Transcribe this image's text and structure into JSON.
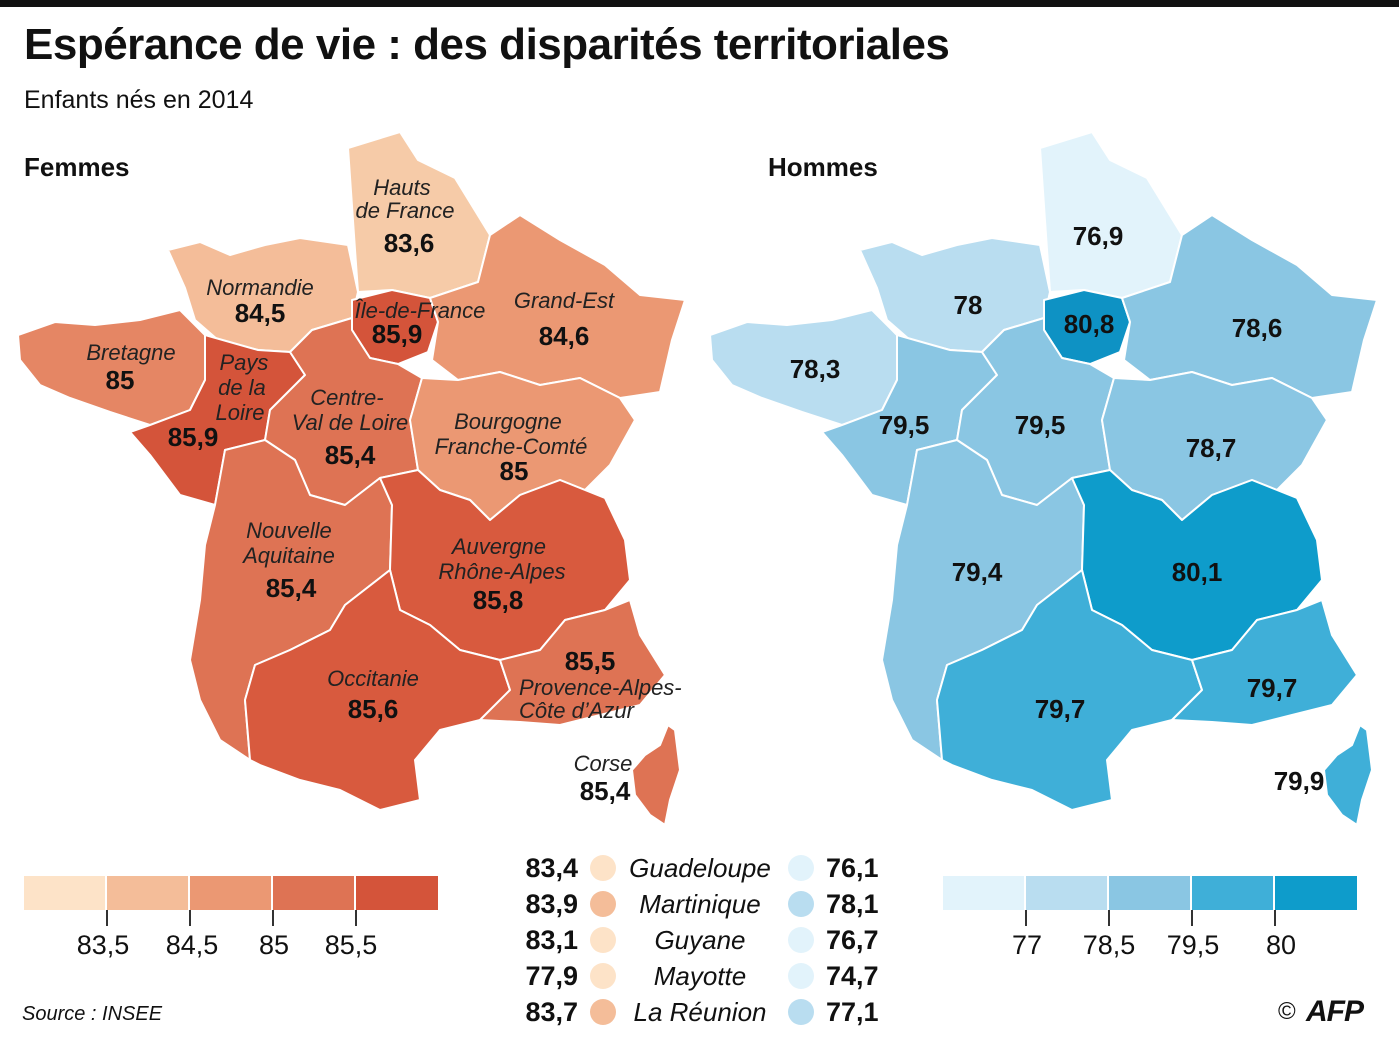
{
  "title": "Espérance de vie : des disparités territoriales",
  "subtitle": "Enfants nés en 2014",
  "women": {
    "heading": "Femmes",
    "regions": [
      {
        "id": "hdf",
        "name_lines": [
          "Hauts",
          "de France"
        ],
        "value": "83,6",
        "color": "#f6cba8"
      },
      {
        "id": "nor",
        "name_lines": [
          "Normandie"
        ],
        "value": "84,5",
        "color": "#f4bd99"
      },
      {
        "id": "idf",
        "name_lines": [
          "Île-de-France"
        ],
        "value": "85,9",
        "color": "#d4543a"
      },
      {
        "id": "ge",
        "name_lines": [
          "Grand-Est"
        ],
        "value": "84,6",
        "color": "#eb9873"
      },
      {
        "id": "bre",
        "name_lines": [
          "Bretagne"
        ],
        "value": "85",
        "color": "#e58664"
      },
      {
        "id": "pdl",
        "name_lines": [
          "Pays",
          "de la",
          "Loire"
        ],
        "value": "85,9",
        "color": "#d4543a"
      },
      {
        "id": "cvl",
        "name_lines": [
          "Centre-",
          "Val de Loire"
        ],
        "value": "85,4",
        "color": "#de7354"
      },
      {
        "id": "bfc",
        "name_lines": [
          "Bourgogne",
          "Franche-Comté"
        ],
        "value": "85",
        "color": "#eb9873"
      },
      {
        "id": "naq",
        "name_lines": [
          "Nouvelle",
          "Aquitaine"
        ],
        "value": "85,4",
        "color": "#de7354"
      },
      {
        "id": "ara",
        "name_lines": [
          "Auvergne",
          "Rhône-Alpes"
        ],
        "value": "85,8",
        "color": "#d85a3e"
      },
      {
        "id": "occ",
        "name_lines": [
          "Occitanie"
        ],
        "value": "85,6",
        "color": "#d85a3e"
      },
      {
        "id": "pac",
        "name_lines": [
          "Provence-Alpes-",
          "Côte d’Azur"
        ],
        "value": "85,5",
        "color": "#de7354"
      },
      {
        "id": "cor",
        "name_lines": [
          "Corse"
        ],
        "value": "85,4",
        "color": "#de7354"
      }
    ],
    "legend": {
      "colors": [
        "#fde3c8",
        "#f4bd99",
        "#eb9873",
        "#de7354",
        "#d4543a"
      ],
      "ticks": [
        "83,5",
        "84,5",
        "85",
        "85,5"
      ]
    }
  },
  "men": {
    "heading": "Hommes",
    "regions": [
      {
        "id": "hdf",
        "value": "76,9",
        "color": "#e2f3fb"
      },
      {
        "id": "nor",
        "value": "78",
        "color": "#b9ddf0"
      },
      {
        "id": "idf",
        "value": "80,8",
        "color": "#0e92c4"
      },
      {
        "id": "ge",
        "value": "78,6",
        "color": "#8ac6e3"
      },
      {
        "id": "bre",
        "value": "78,3",
        "color": "#b9ddf0"
      },
      {
        "id": "pdl",
        "value": "79,5",
        "color": "#8ac6e3"
      },
      {
        "id": "cvl",
        "value": "79,5",
        "color": "#8ac6e3"
      },
      {
        "id": "bfc",
        "value": "78,7",
        "color": "#8ac6e3"
      },
      {
        "id": "naq",
        "value": "79,4",
        "color": "#8ac6e3"
      },
      {
        "id": "ara",
        "value": "80,1",
        "color": "#0e9ccb"
      },
      {
        "id": "occ",
        "value": "79,7",
        "color": "#3fafd8"
      },
      {
        "id": "pac",
        "value": "79,7",
        "color": "#3fafd8"
      },
      {
        "id": "cor",
        "value": "79,9",
        "color": "#3fafd8"
      }
    ],
    "legend": {
      "colors": [
        "#e2f3fb",
        "#b9ddf0",
        "#8ac6e3",
        "#3fafd8",
        "#0e9ccb"
      ],
      "ticks": [
        "77",
        "78,5",
        "79,5",
        "80"
      ]
    }
  },
  "overseas": [
    {
      "name": "Guadeloupe",
      "women": "83,4",
      "men": "76,1",
      "women_color": "#fde3c8",
      "men_color": "#e2f3fb"
    },
    {
      "name": "Martinique",
      "women": "83,9",
      "men": "78,1",
      "women_color": "#f4bd99",
      "men_color": "#b9ddf0"
    },
    {
      "name": "Guyane",
      "women": "83,1",
      "men": "76,7",
      "women_color": "#fde3c8",
      "men_color": "#e2f3fb"
    },
    {
      "name": "Mayotte",
      "women": "77,9",
      "men": "74,7",
      "women_color": "#fde3c8",
      "men_color": "#e2f3fb"
    },
    {
      "name": "La Réunion",
      "women": "83,7",
      "men": "77,1",
      "women_color": "#f4bd99",
      "men_color": "#b9ddf0"
    }
  ],
  "source": "Source : INSEE",
  "credit": {
    "copyright": "©",
    "agency": "AFP"
  }
}
